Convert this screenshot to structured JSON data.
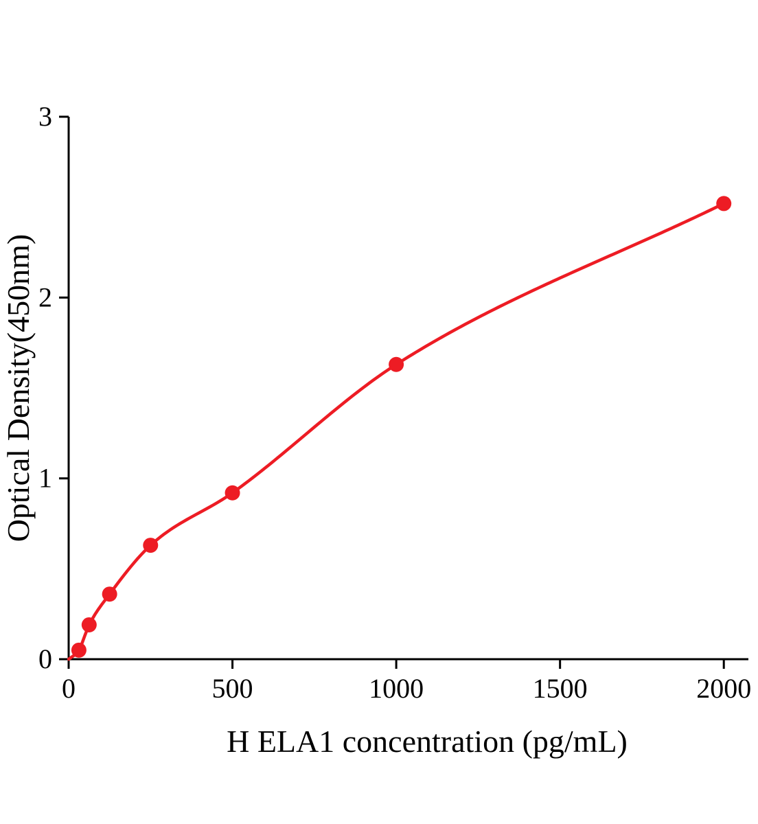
{
  "chart_data": {
    "type": "scatter",
    "title": "",
    "xlabel": "H ELA1 concentration (pg/mL)",
    "ylabel": "Optical Density(450nm)",
    "x": [
      31.25,
      62.5,
      125,
      250,
      500,
      1000,
      2000
    ],
    "y": [
      0.05,
      0.19,
      0.36,
      0.63,
      0.92,
      1.63,
      2.52
    ],
    "curve_origin": {
      "x": 0,
      "y": 0.0
    },
    "xlim": [
      0,
      2075
    ],
    "ylim": [
      0,
      3
    ],
    "xticks": [
      0,
      500,
      1000,
      1500,
      2000
    ],
    "yticks": [
      0,
      1,
      2,
      3
    ],
    "legend": [],
    "grid": false,
    "accent_color": "#ed1c24",
    "axis_color": "#000000"
  }
}
